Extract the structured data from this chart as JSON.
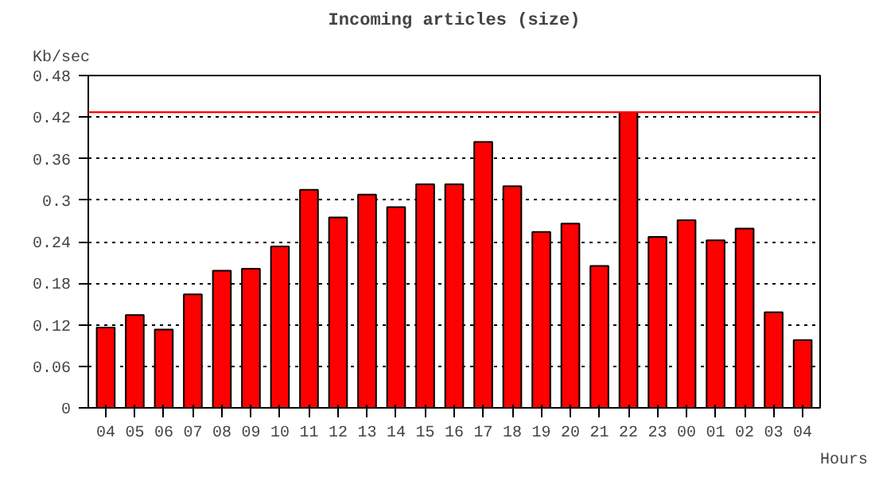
{
  "chart_data": {
    "type": "bar",
    "title": "Incoming articles (size)",
    "xlabel": "Hours",
    "ylabel": "Kb/sec",
    "categories": [
      "04",
      "05",
      "06",
      "07",
      "08",
      "09",
      "10",
      "11",
      "12",
      "13",
      "14",
      "15",
      "16",
      "17",
      "18",
      "19",
      "20",
      "21",
      "22",
      "23",
      "00",
      "01",
      "02",
      "03",
      "04"
    ],
    "values": [
      0.116,
      0.134,
      0.113,
      0.164,
      0.198,
      0.201,
      0.233,
      0.315,
      0.275,
      0.308,
      0.29,
      0.323,
      0.323,
      0.384,
      0.32,
      0.254,
      0.266,
      0.205,
      0.427,
      0.247,
      0.271,
      0.242,
      0.259,
      0.138,
      0.098
    ],
    "color": "#ff0000",
    "ylim": [
      0,
      0.48
    ],
    "yticks": [
      0,
      0.06,
      0.12,
      0.18,
      0.24,
      0.3,
      0.36,
      0.42,
      0.48
    ],
    "grid": "y",
    "ref_lines": [
      {
        "axis": "y",
        "value": 0.427,
        "color": "#ff0000"
      }
    ]
  }
}
